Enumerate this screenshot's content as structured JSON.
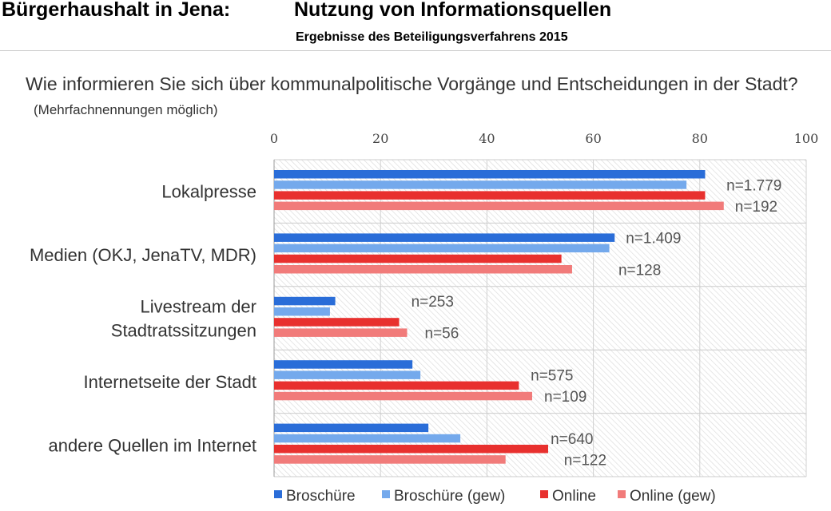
{
  "header": {
    "title_left": "Bürgerhaushalt in Jena:",
    "title_right": "Nutzung von Informationsquellen",
    "subtitle": "Ergebnisse des Beteiligungsverfahrens 2015"
  },
  "question": {
    "text": "Wie informieren Sie sich über kommunalpolitische Vorgänge und Entscheidungen in der Stadt?",
    "note": "(Mehrfachnennungen möglich)"
  },
  "chart_data": {
    "type": "bar",
    "orientation": "horizontal",
    "xlim": [
      0,
      100
    ],
    "xticks": [
      0,
      20,
      40,
      60,
      80,
      100
    ],
    "grid": true,
    "legend_position": "bottom",
    "categories": [
      [
        "Lokalpresse"
      ],
      [
        "Medien (OKJ, JenaTV, MDR)"
      ],
      [
        "Livestream der",
        "Stadtratssitzungen"
      ],
      [
        "Internetseite der Stadt"
      ],
      [
        "andere Quellen im Internet"
      ]
    ],
    "series": [
      {
        "name": "Broschüre",
        "color": "#2a6dd8",
        "values": [
          81,
          64,
          11.5,
          26,
          29
        ]
      },
      {
        "name": "Broschüre (gew)",
        "color": "#74a9ec",
        "values": [
          77.5,
          63,
          10.5,
          27.5,
          35
        ]
      },
      {
        "name": "Online",
        "color": "#e8302e",
        "values": [
          81,
          54,
          23.5,
          46,
          51.5
        ]
      },
      {
        "name": "Online (gew)",
        "color": "#f17b7a",
        "values": [
          84.5,
          56,
          25,
          48.5,
          43.5
        ]
      }
    ],
    "annotations": [
      {
        "category": 0,
        "series": 1,
        "text": "n=1.779"
      },
      {
        "category": 0,
        "series": 3,
        "text": "n=192"
      },
      {
        "category": 1,
        "series": 0,
        "text": "n=1.409"
      },
      {
        "category": 1,
        "series": 3,
        "text": "n=128"
      },
      {
        "category": 2,
        "series": 0,
        "text": "n=253"
      },
      {
        "category": 2,
        "series": 3,
        "text": "n=56"
      },
      {
        "category": 3,
        "series": 1,
        "text": "n=575"
      },
      {
        "category": 3,
        "series": 3,
        "text": "n=109"
      },
      {
        "category": 4,
        "series": 1,
        "text": "n=640"
      },
      {
        "category": 4,
        "series": 3,
        "text": "n=122"
      }
    ]
  }
}
